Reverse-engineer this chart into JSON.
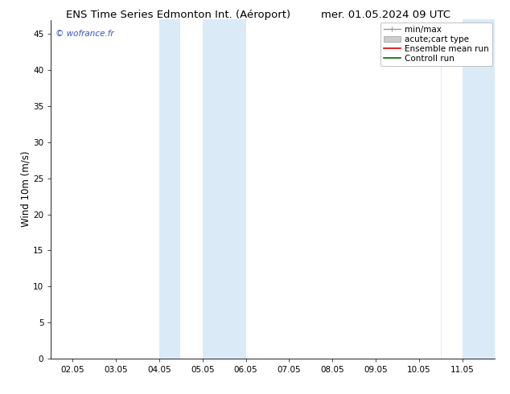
{
  "title_left": "ENS Time Series Edmonton Int. (Aéroport)",
  "title_right": "mer. 01.05.2024 09 UTC",
  "ylabel": "Wind 10m (m/s)",
  "watermark": "© wofrance.fr",
  "ylim": [
    0,
    47
  ],
  "yticks": [
    0,
    5,
    10,
    15,
    20,
    25,
    30,
    35,
    40,
    45
  ],
  "xtick_labels": [
    "02.05",
    "03.05",
    "04.05",
    "05.05",
    "06.05",
    "07.05",
    "08.05",
    "09.05",
    "10.05",
    "11.05"
  ],
  "xtick_positions": [
    1,
    2,
    3,
    4,
    5,
    6,
    7,
    8,
    9,
    10
  ],
  "xlim": [
    0.5,
    10.75
  ],
  "band_color": "#daeaf7",
  "bands": [
    [
      3.0,
      3.48
    ],
    [
      4.0,
      5.0
    ],
    [
      9.5,
      9.52
    ],
    [
      10.0,
      10.75
    ]
  ],
  "bg_color": "#ffffff",
  "watermark_color": "#3355cc",
  "title_fontsize": 9.5,
  "ylabel_fontsize": 8.5,
  "tick_fontsize": 7.5,
  "legend_fontsize": 7.5
}
